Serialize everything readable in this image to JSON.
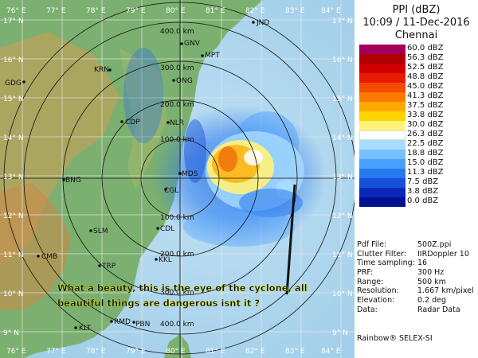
{
  "header": {
    "product": "PPI (dBZ)",
    "datetime": "10:09 / 11-Dec-2016",
    "station": "Chennai"
  },
  "legend": [
    {
      "label": "60.0 dBZ",
      "color": "#a0005a"
    },
    {
      "label": "56.3 dBZ",
      "color": "#b00000"
    },
    {
      "label": "52.5 dBZ",
      "color": "#d20000"
    },
    {
      "label": "48.8 dBZ",
      "color": "#e81a00"
    },
    {
      "label": "45.0 dBZ",
      "color": "#f54a00"
    },
    {
      "label": "41.3 dBZ",
      "color": "#fa7a00"
    },
    {
      "label": "37.5 dBZ",
      "color": "#ffaa00"
    },
    {
      "label": "33.8 dBZ",
      "color": "#ffd400"
    },
    {
      "label": "30.0 dBZ",
      "color": "#fff27a"
    },
    {
      "label": "26.3 dBZ",
      "color": "#ffffff"
    },
    {
      "label": "22.5 dBZ",
      "color": "#a8dcff"
    },
    {
      "label": "18.8 dBZ",
      "color": "#78c0ff"
    },
    {
      "label": "15.0 dBZ",
      "color": "#4aa0ff"
    },
    {
      "label": "11.3 dBZ",
      "color": "#2878f0"
    },
    {
      "label": "7.5 dBZ",
      "color": "#1450d8"
    },
    {
      "label": "3.8 dBZ",
      "color": "#0a28b8"
    },
    {
      "label": "0.0 dBZ",
      "color": "#001090"
    }
  ],
  "info": [
    {
      "key": "Pdf File:",
      "value": "500Z.ppi"
    },
    {
      "key": "Clutter Filter:",
      "value": "IIRDoppler 10"
    },
    {
      "key": "Time sampling:",
      "value": "16"
    },
    {
      "key": "PRF:",
      "value": "300 Hz"
    },
    {
      "key": "Range:",
      "value": "500 km"
    },
    {
      "key": "Resolution:",
      "value": "1.667 km/pixel"
    },
    {
      "key": "Elevation:",
      "value": "0.2 deg"
    },
    {
      "key": "Data:",
      "value": "Radar Data"
    }
  ],
  "vendor": "Rainbow® SELEX-SI",
  "map": {
    "lon_labels_top": [
      "76° E",
      "77° E",
      "78° E",
      "79° E",
      "80° E",
      "81° E",
      "82° E",
      "83° E",
      "84° E"
    ],
    "lon_labels_bottom": [
      "76° E",
      "77° E",
      "78° E",
      "79° E",
      "80° E",
      "81° E",
      "82° E",
      "83° E",
      "84° E"
    ],
    "lat_labels_left": [
      "17° N",
      "16° N",
      "15° N",
      "14° N",
      "13° N",
      "12° N",
      "11° N",
      "10° N",
      "9° N"
    ],
    "lat_labels_right": [
      "17° N",
      "16° N",
      "15° N",
      "14° N",
      "13° N",
      "12° N",
      "11° N",
      "10° N",
      "9° N"
    ],
    "range_labels_north": [
      "400.0 km",
      "300.0 km",
      "200.0 km",
      "100.0 km"
    ],
    "range_labels_south": [
      "100.0 km",
      "200.0 km",
      "300.0 km",
      "400.0 km"
    ],
    "stations": [
      "GNV",
      "MPT",
      "KRN",
      "GDG",
      "ONG",
      "CDP",
      "NLR",
      "MDS",
      "BNG",
      "CGL",
      "CDL",
      "SLM",
      "CMB",
      "TRP",
      "KKL",
      "KLT",
      "RMD",
      "PBN",
      "JND"
    ]
  },
  "caption": {
    "line1": "What a beauty, this is the eye of the cyclone, all",
    "line2": "beautiful things are dangerous isnt it ?"
  }
}
